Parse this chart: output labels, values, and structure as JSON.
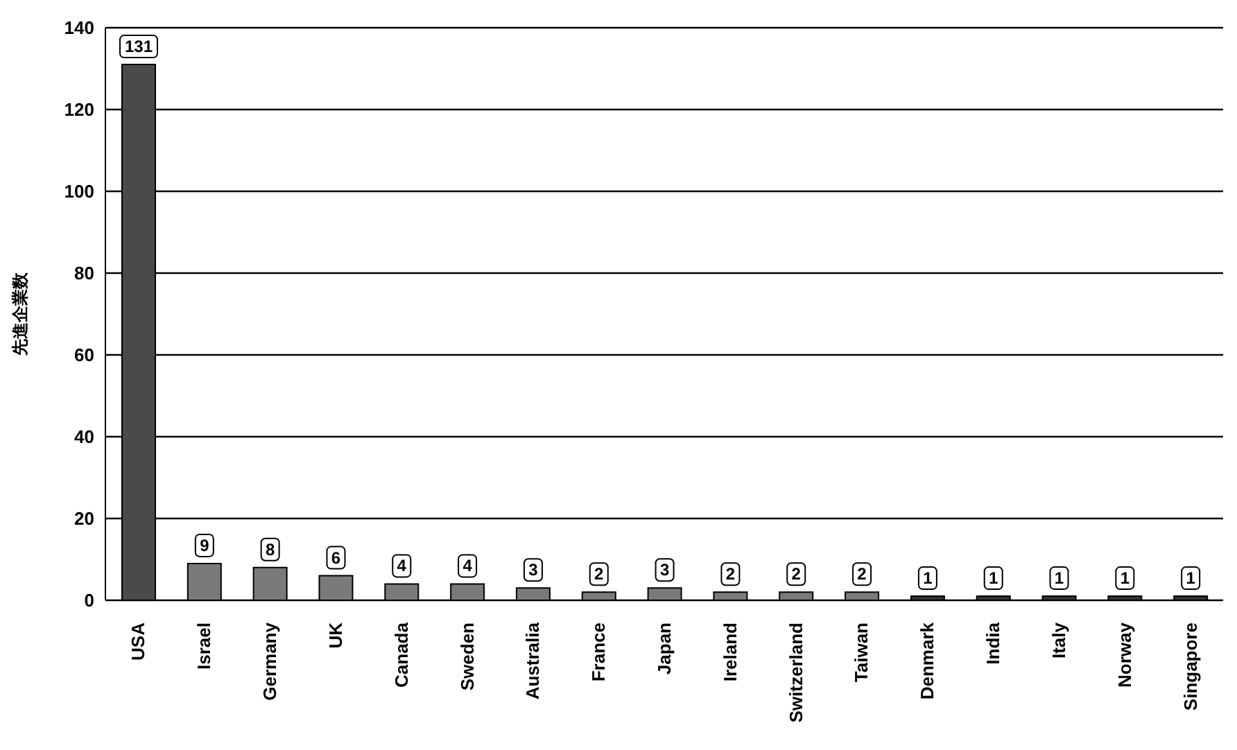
{
  "chart_data": {
    "type": "bar",
    "ylabel": "先進企業数",
    "categories": [
      "USA",
      "Israel",
      "Germany",
      "UK",
      "Canada",
      "Sweden",
      "Australia",
      "France",
      "Japan",
      "Ireland",
      "Switzerland",
      "Taiwan",
      "Denmark",
      "India",
      "Italy",
      "Norway",
      "Singapore"
    ],
    "values": [
      131,
      9,
      8,
      6,
      4,
      4,
      3,
      2,
      3,
      2,
      2,
      2,
      1,
      1,
      1,
      1,
      1
    ],
    "colors": [
      "#4a4a4a",
      "#7a7a7a",
      "#7a7a7a",
      "#7a7a7a",
      "#7a7a7a",
      "#7a7a7a",
      "#7a7a7a",
      "#7a7a7a",
      "#7a7a7a",
      "#7a7a7a",
      "#7a7a7a",
      "#7a7a7a",
      "#333333",
      "#333333",
      "#333333",
      "#333333",
      "#333333"
    ],
    "ylim": [
      0,
      140
    ],
    "yticks": [
      0,
      20,
      40,
      60,
      80,
      100,
      120,
      140
    ],
    "grid": "y",
    "data_labels": true
  }
}
